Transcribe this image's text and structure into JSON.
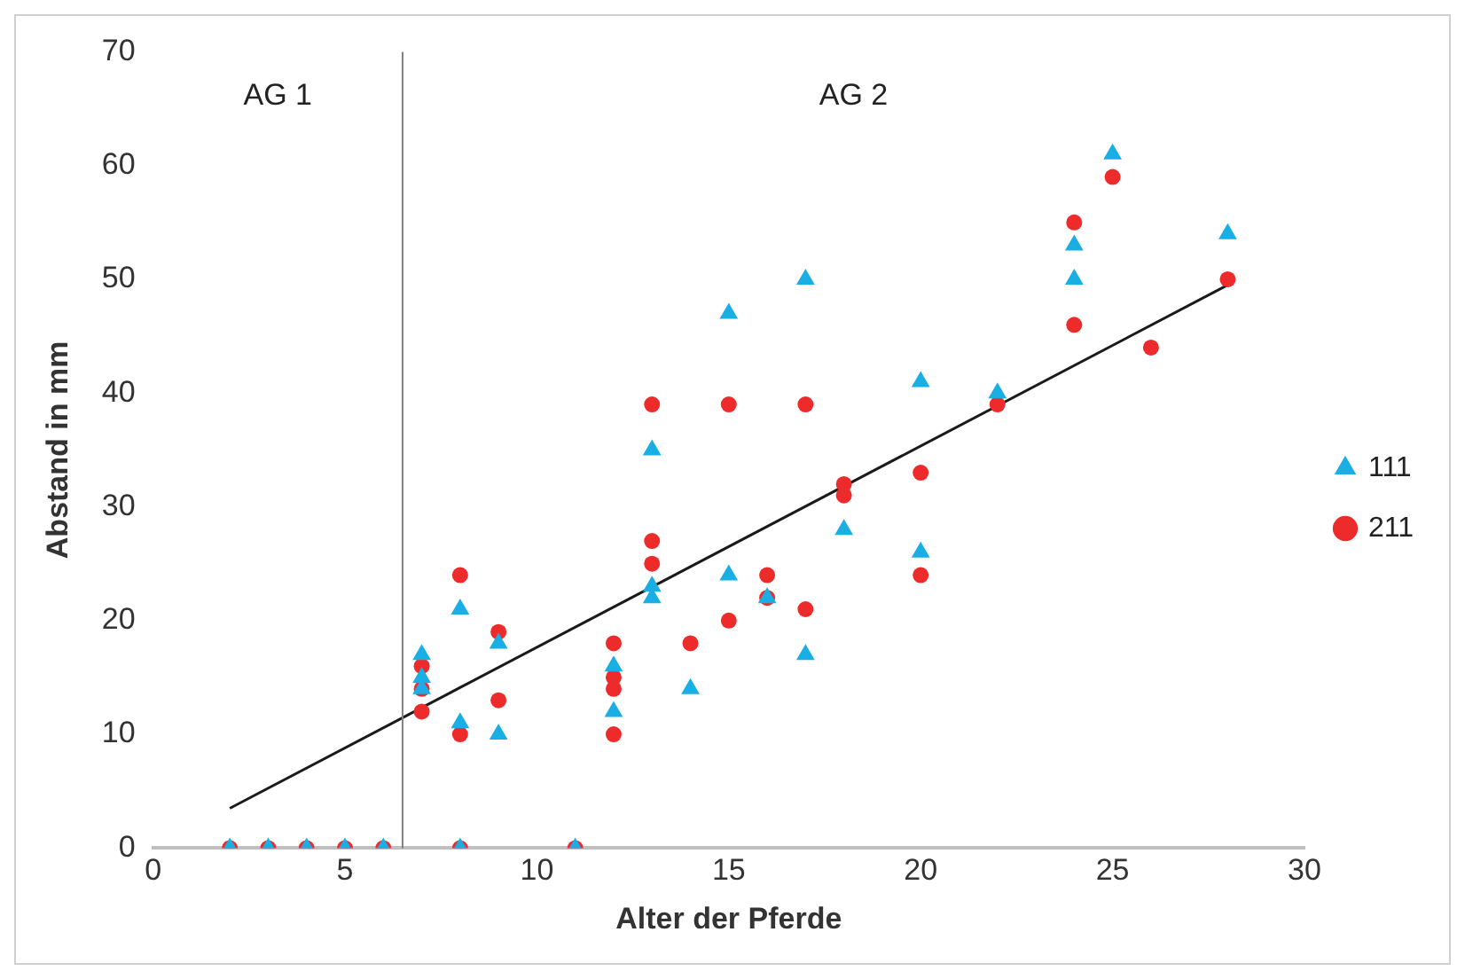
{
  "chart_data": {
    "type": "scatter",
    "xlabel": "Alter der Pferde",
    "ylabel": "Abstand in mm",
    "xlim": [
      0,
      30
    ],
    "xticks": [
      0,
      5,
      10,
      15,
      20,
      25,
      30
    ],
    "ylim": [
      0,
      70
    ],
    "yticks": [
      0,
      10,
      20,
      30,
      40,
      50,
      60,
      70
    ],
    "grid": false,
    "legend": "right",
    "series": [
      {
        "name": "111",
        "color": "#19aee4",
        "marker": "triangle",
        "x": [
          2,
          3,
          4,
          5,
          6,
          7,
          7,
          7,
          8,
          8,
          8,
          9,
          9,
          11,
          12,
          12,
          13,
          13,
          13,
          14,
          15,
          15,
          16,
          17,
          17,
          18,
          20,
          20,
          22,
          24,
          24,
          25,
          28
        ],
        "values": [
          0,
          0,
          0,
          0,
          0,
          17,
          15,
          14,
          21,
          11,
          0,
          18,
          10,
          0,
          16,
          12,
          35,
          23,
          22,
          14,
          47,
          24,
          22,
          50,
          17,
          28,
          41,
          26,
          40,
          53,
          50,
          61,
          54
        ]
      },
      {
        "name": "211",
        "color": "#ee2b2b",
        "marker": "circle",
        "x": [
          2,
          3,
          4,
          5,
          6,
          7,
          7,
          7,
          8,
          8,
          8,
          9,
          9,
          11,
          12,
          12,
          12,
          12,
          13,
          13,
          13,
          14,
          15,
          15,
          16,
          16,
          17,
          17,
          18,
          18,
          20,
          20,
          22,
          24,
          24,
          25,
          26,
          28
        ],
        "values": [
          0,
          0,
          0,
          0,
          0,
          16,
          14,
          12,
          24,
          10,
          0,
          19,
          13,
          0,
          18,
          15,
          14,
          10,
          39,
          27,
          25,
          18,
          39,
          20,
          24,
          22,
          39,
          21,
          32,
          31,
          33,
          24,
          39,
          55,
          46,
          59,
          44,
          50
        ]
      },
      {
        "type": "line",
        "color": "#1a1a1a",
        "marker": "none",
        "x": [
          2,
          28
        ],
        "values": [
          3.5,
          49.5
        ]
      }
    ],
    "ref_lines": [
      {
        "axis": "x",
        "value": 6.5,
        "color": "#808080"
      }
    ],
    "annotations": [
      "AG 1",
      "AG 2"
    ]
  }
}
